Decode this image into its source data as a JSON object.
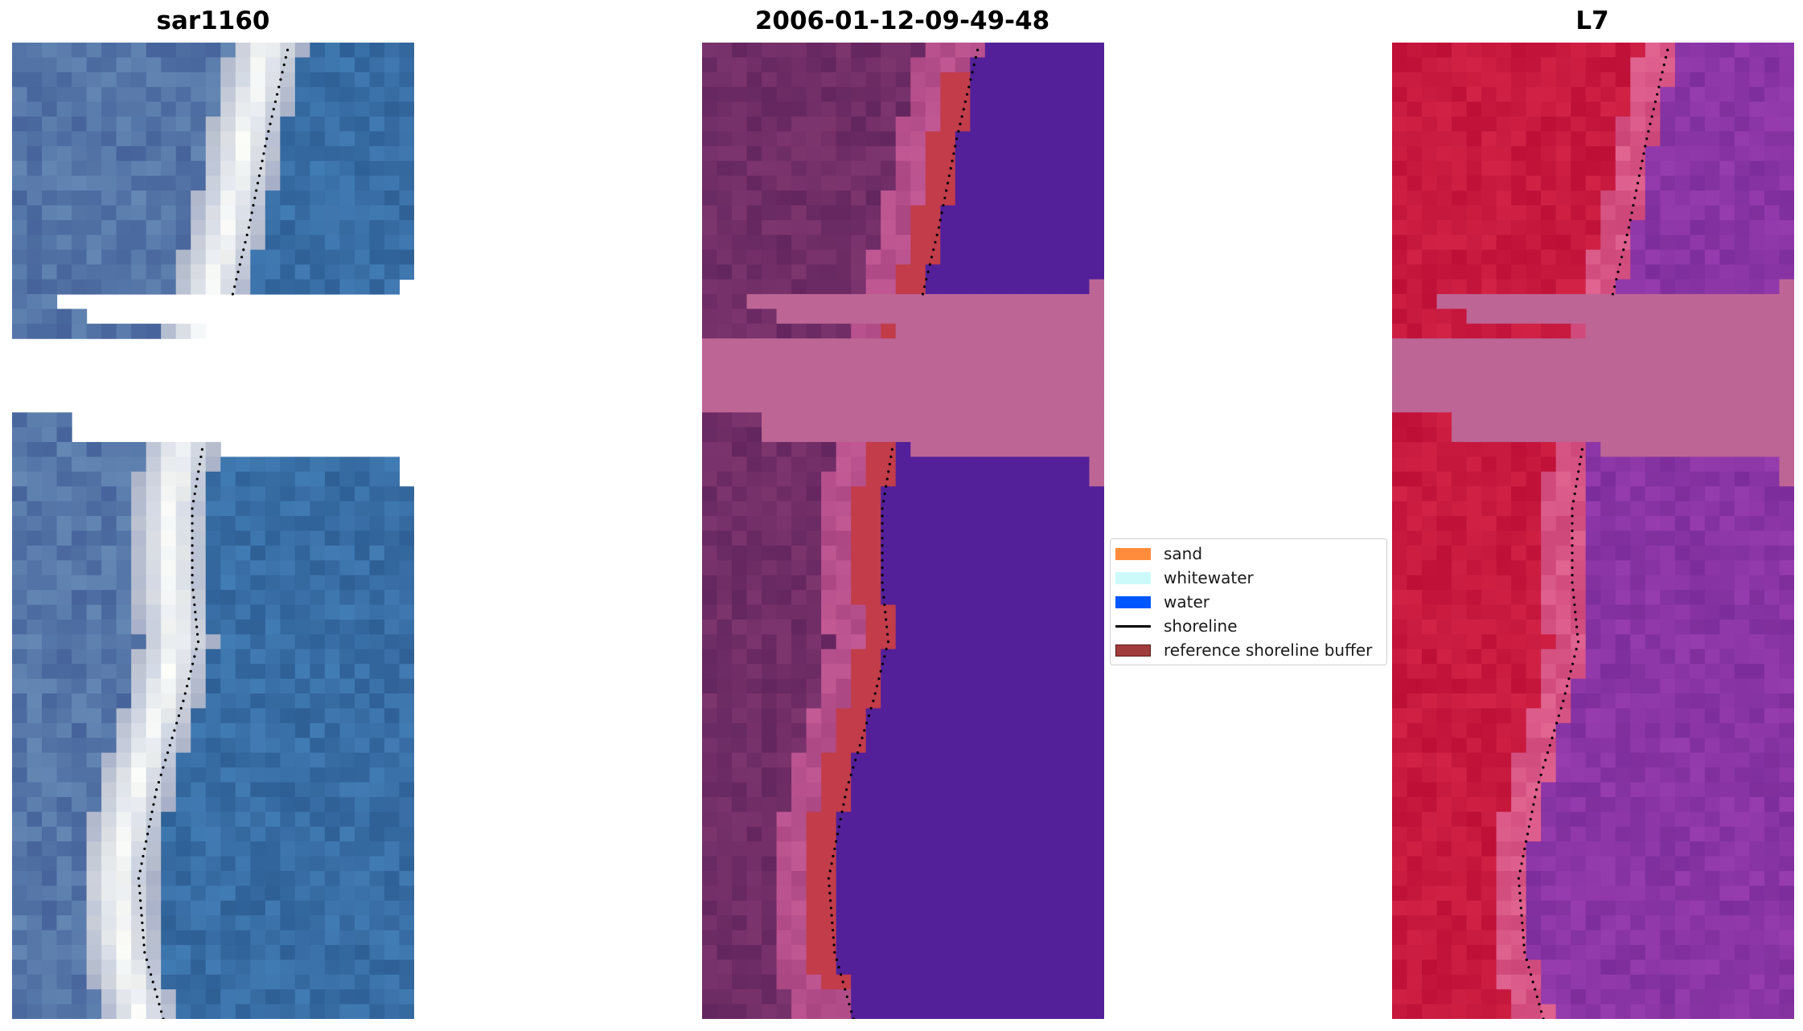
{
  "panels": [
    {
      "title": "sar1160",
      "style": "rgb"
    },
    {
      "title": "2006-01-12-09-49-48",
      "style": "classified"
    },
    {
      "title": "L7",
      "style": "ndwi"
    }
  ],
  "legend": {
    "items": [
      {
        "label": "sand",
        "color": "#ff8c3c",
        "kind": "patch"
      },
      {
        "label": "whitewater",
        "color": "#ccfafa",
        "kind": "patch"
      },
      {
        "label": "water",
        "color": "#0057ff",
        "kind": "patch"
      },
      {
        "label": "shoreline",
        "color": "#000000",
        "kind": "line"
      },
      {
        "label": "reference shoreline buffer",
        "color": "#a13c3c",
        "kind": "patch"
      }
    ]
  },
  "colors": {
    "nodata_band": "#bd6595",
    "classified_water": "#532099",
    "buffer_overlay": "#c23c4a",
    "land_dark": "#6e2666",
    "ndwi_land": "#c0123b",
    "ndwi_water": "#8b359f"
  }
}
